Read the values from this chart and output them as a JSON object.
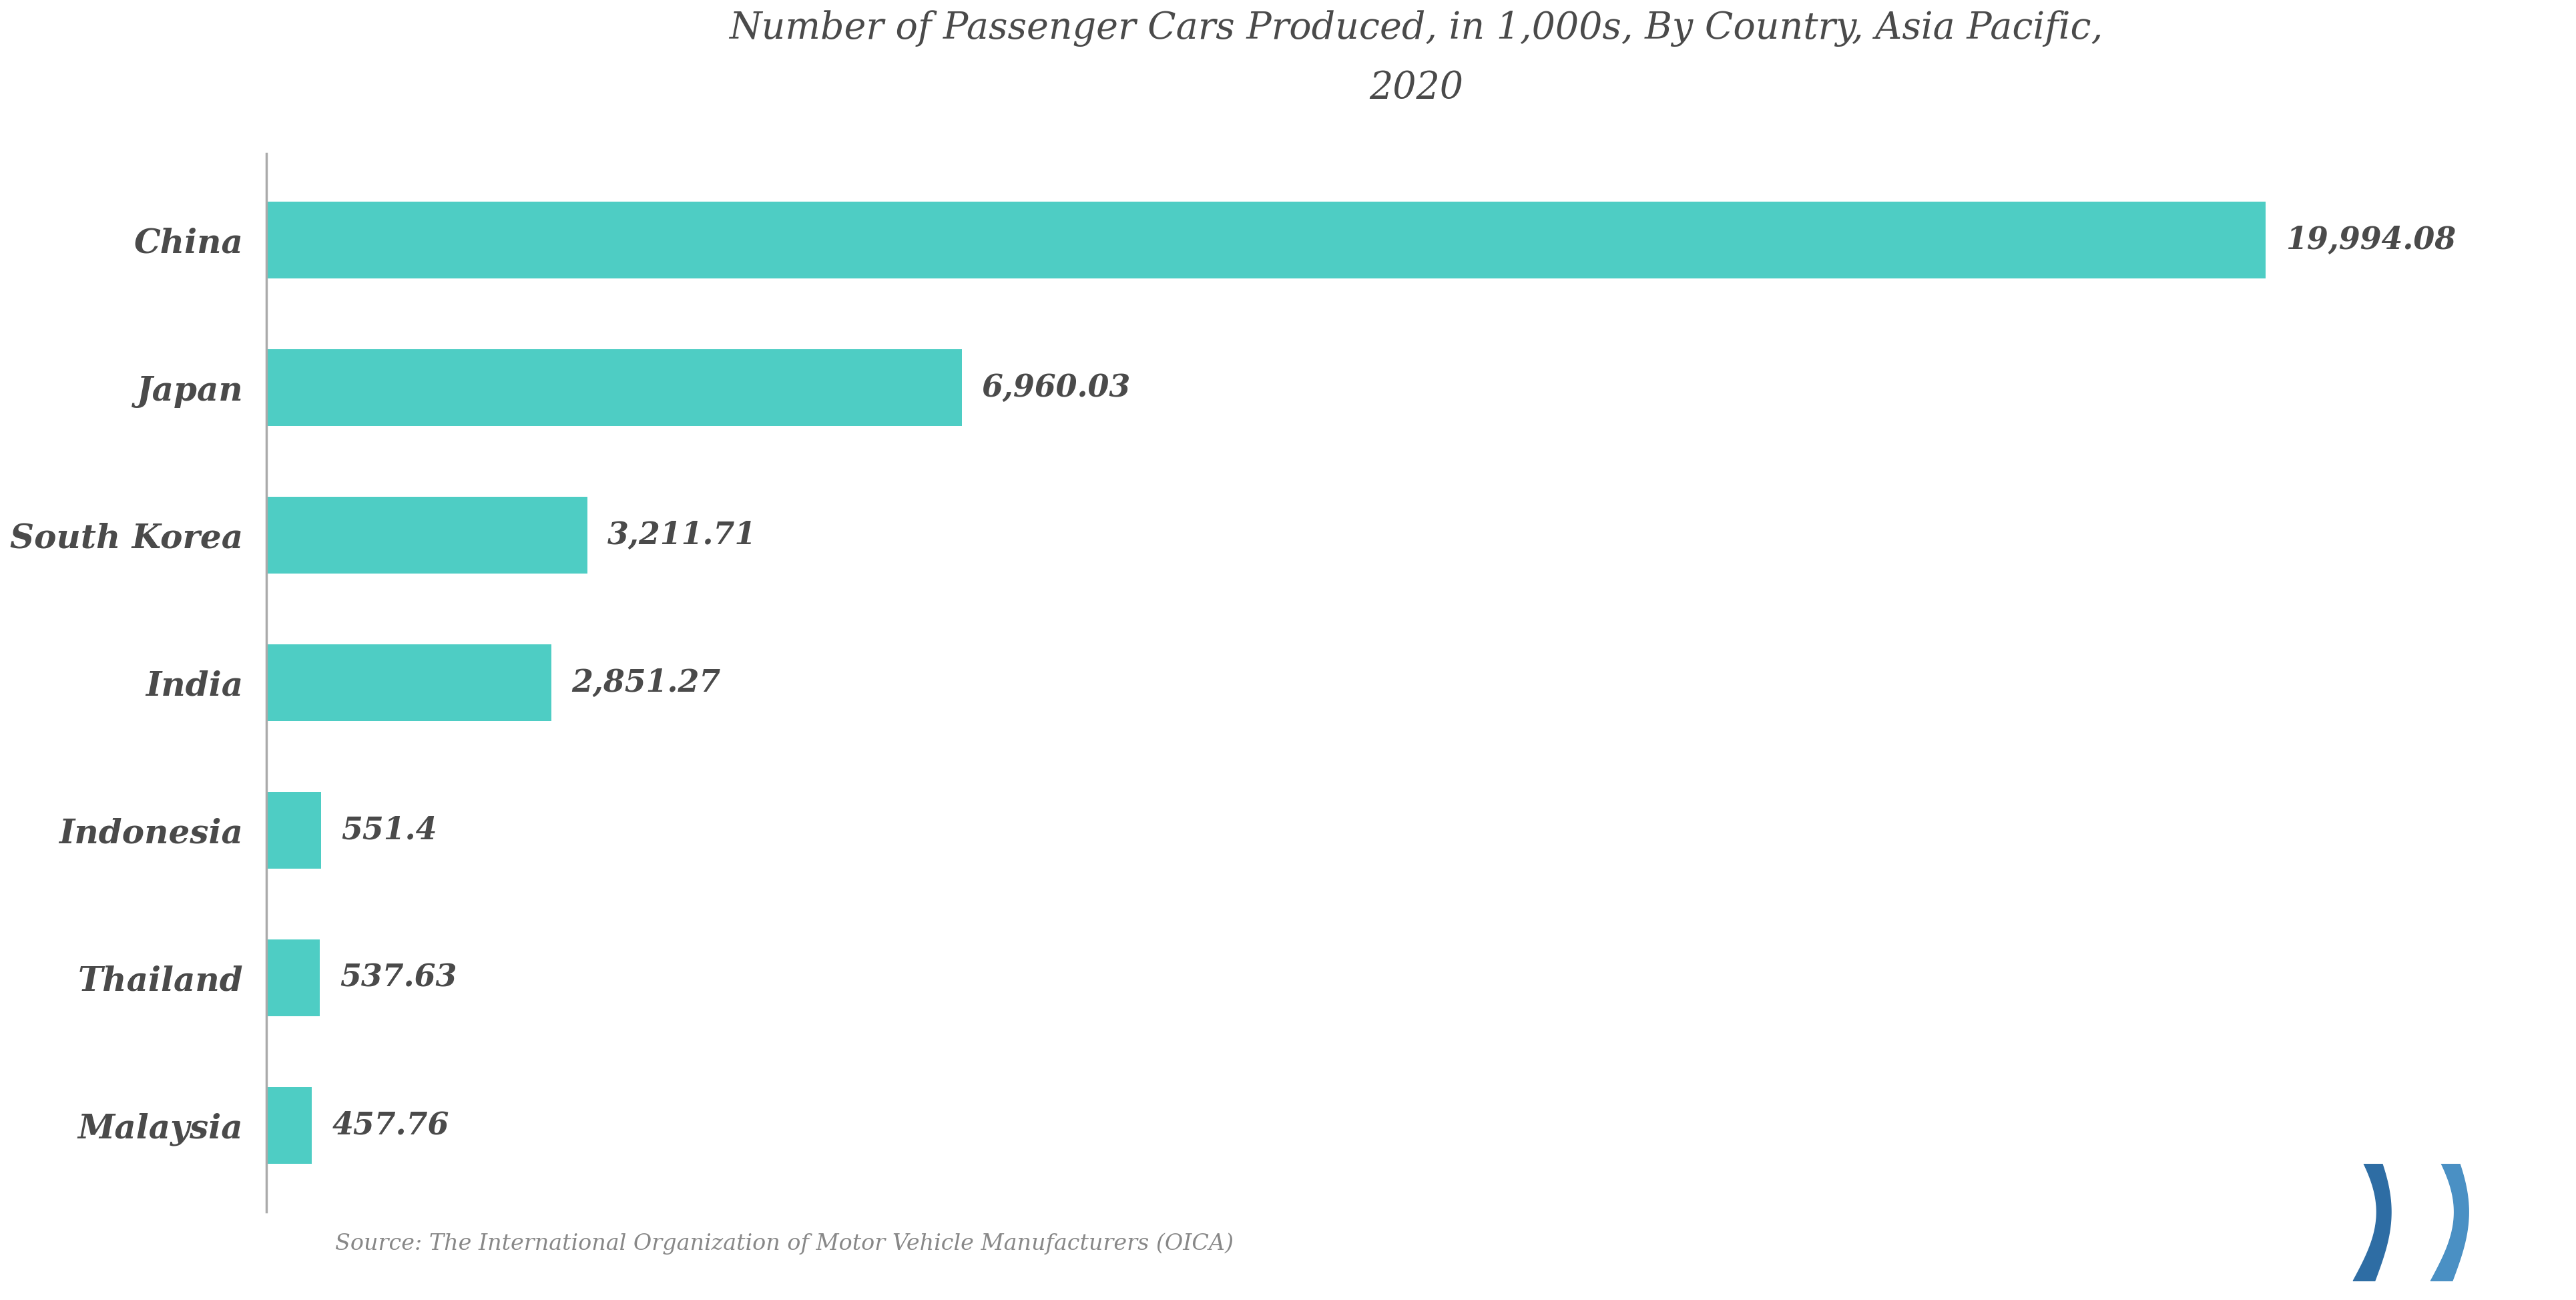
{
  "title": "Number of Passenger Cars Produced, in 1,000s, By Country, Asia Pacific,\n2020",
  "categories": [
    "China",
    "Japan",
    "South Korea",
    "India",
    "Indonesia",
    "Thailand",
    "Malaysia"
  ],
  "values": [
    19994.08,
    6960.03,
    3211.71,
    2851.27,
    551.4,
    537.63,
    457.76
  ],
  "labels": [
    "19,994.08",
    "6,960.03",
    "3,211.71",
    "2,851.27",
    "551.4",
    "537.63",
    "457.76"
  ],
  "bar_color": "#4ECDC4",
  "background_color": "#ffffff",
  "text_color": "#4a4a4a",
  "title_color": "#4a4a4a",
  "spine_color": "#aaaaaa",
  "source_text": "Source: The International Organization of Motor Vehicle Manufacturers (OICA)",
  "source_color": "#888888",
  "xlim": [
    0,
    23000
  ],
  "logo_color1": "#2e6da4",
  "logo_color2": "#4a90c4"
}
